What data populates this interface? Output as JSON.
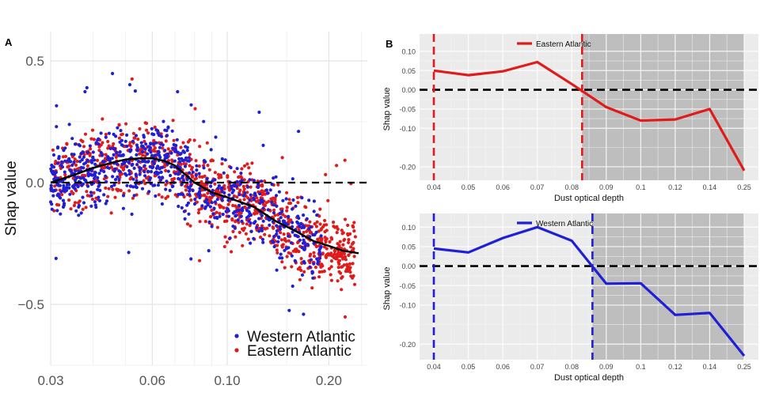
{
  "chart_data": [
    {
      "panel_label": "A",
      "type": "scatter",
      "x_scale": "log",
      "xlim": [
        0.03,
        0.26
      ],
      "ylim": [
        -0.75,
        0.62
      ],
      "ylabel": "Shap value",
      "xlabel": "",
      "x_ticks": [
        0.03,
        0.06,
        0.1,
        0.2
      ],
      "x_tick_labels": [
        "0.03",
        "0.06",
        "0.10",
        "0.20"
      ],
      "y_ticks": [
        0.5,
        0.0,
        -0.5
      ],
      "y_tick_labels": [
        "0.5",
        "0.0",
        "−0.5"
      ],
      "reference_line_y": 0,
      "legend_position": "bottom-right",
      "series": [
        {
          "name": "Western Atlantic",
          "color": "#1f1fd6",
          "x_range": [
            0.03,
            0.19
          ],
          "peak_x": 0.055,
          "n_points": 750
        },
        {
          "name": "Eastern Atlantic",
          "color": "#e01b1b",
          "x_range": [
            0.03,
            0.24
          ],
          "peak_x": 0.062,
          "n_points": 950
        }
      ],
      "smooth_line": {
        "color": "#000000",
        "x": [
          0.03,
          0.035,
          0.04,
          0.045,
          0.05,
          0.055,
          0.06,
          0.065,
          0.07,
          0.08,
          0.09,
          0.1,
          0.12,
          0.14,
          0.16,
          0.18,
          0.2,
          0.22,
          0.245
        ],
        "y": [
          0.0,
          0.03,
          0.06,
          0.08,
          0.095,
          0.1,
          0.1,
          0.09,
          0.07,
          0.0,
          -0.04,
          -0.06,
          -0.1,
          -0.16,
          -0.2,
          -0.24,
          -0.26,
          -0.28,
          -0.29
        ]
      }
    },
    {
      "panel_label": "B",
      "type": "line",
      "title": "",
      "xlabel": "Dust optical depth",
      "ylabel": "Shap value",
      "categories": [
        "0.04",
        "0.05",
        "0.06",
        "0.07",
        "0.08",
        "0.09",
        "0.1",
        "0.12",
        "0.14",
        "0.25"
      ],
      "y_ticks": [
        0.1,
        0.05,
        0.0,
        -0.05,
        -0.1,
        -0.2
      ],
      "y_tick_labels": [
        "0.10",
        "0.05",
        "0.00",
        "-0.05",
        "-0.10",
        "-0.20"
      ],
      "ylim": [
        -0.235,
        0.145
      ],
      "shade_from_x": 0.083,
      "dashed_verticals": [
        0.04,
        0.083
      ],
      "legend_position": "top-center",
      "series": [
        {
          "name": "Eastern Atlantic",
          "color": "#e01b1b",
          "values": [
            0.05,
            0.038,
            0.048,
            0.072,
            0.015,
            -0.045,
            -0.08,
            -0.077,
            -0.05,
            -0.21
          ]
        }
      ]
    },
    {
      "panel_label": "",
      "type": "line",
      "title": "",
      "xlabel": "Dust optical depth",
      "ylabel": "Shap value",
      "categories": [
        "0.04",
        "0.05",
        "0.06",
        "0.07",
        "0.08",
        "0.09",
        "0.1",
        "0.12",
        "0.14",
        "0.25"
      ],
      "y_ticks": [
        0.1,
        0.05,
        0.0,
        -0.05,
        -0.1,
        -0.2
      ],
      "y_tick_labels": [
        "0.10",
        "0.05",
        "0.00",
        "-0.05",
        "-0.10",
        "-0.20"
      ],
      "ylim": [
        -0.24,
        0.135
      ],
      "shade_from_x": 0.086,
      "dashed_verticals": [
        0.04,
        0.086
      ],
      "legend_position": "top-center",
      "series": [
        {
          "name": "Western Atlantic",
          "color": "#1f1fd6",
          "values": [
            0.045,
            0.035,
            0.072,
            0.1,
            0.065,
            -0.045,
            -0.044,
            -0.125,
            -0.12,
            -0.23
          ]
        }
      ]
    }
  ]
}
